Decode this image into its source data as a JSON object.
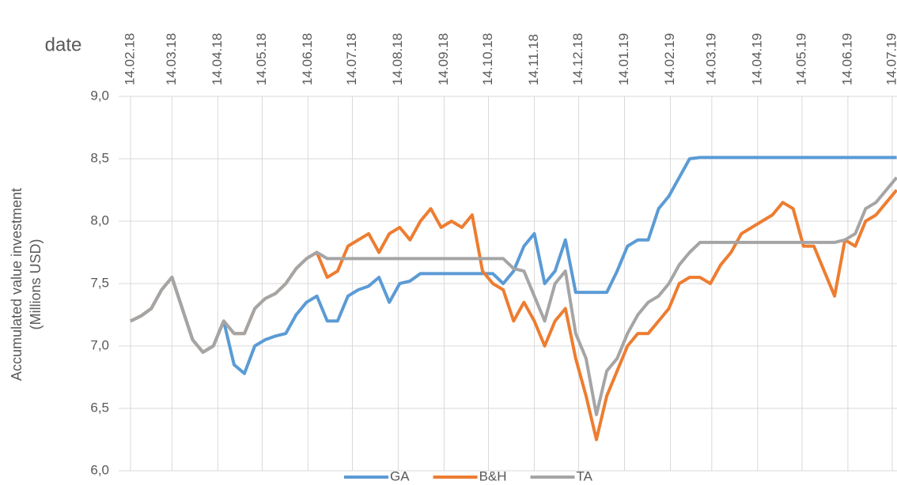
{
  "chart_data": {
    "type": "line",
    "xlabel": "date",
    "ylabel": [
      "Accumulated value investment",
      "(Millions USD)"
    ],
    "x": [
      "14.02.18",
      "21.02.18",
      "28.02.18",
      "07.03.18",
      "14.03.18",
      "21.03.18",
      "28.03.18",
      "04.04.18",
      "11.04.18",
      "18.04.18",
      "25.04.18",
      "02.05.18",
      "09.05.18",
      "16.05.18",
      "23.05.18",
      "30.05.18",
      "06.06.18",
      "13.06.18",
      "20.06.18",
      "27.06.18",
      "04.07.18",
      "11.07.18",
      "18.07.18",
      "25.07.18",
      "01.08.18",
      "08.08.18",
      "15.08.18",
      "22.08.18",
      "29.08.18",
      "05.09.18",
      "12.09.18",
      "19.09.18",
      "26.09.18",
      "03.10.18",
      "10.10.18",
      "17.10.18",
      "24.10.18",
      "31.10.18",
      "07.11.18",
      "14.11.18",
      "21.11.18",
      "28.11.18",
      "05.12.18",
      "12.12.18",
      "19.12.18",
      "26.12.18",
      "02.01.19",
      "09.01.19",
      "16.01.19",
      "23.01.19",
      "30.01.19",
      "06.02.19",
      "13.02.19",
      "20.02.19",
      "27.02.19",
      "06.03.19",
      "13.03.19",
      "20.03.19",
      "27.03.19",
      "03.04.19",
      "10.04.19",
      "17.04.19",
      "24.04.19",
      "01.05.19",
      "08.05.19",
      "15.05.19",
      "22.05.19",
      "29.05.19",
      "05.06.19",
      "12.06.19",
      "19.06.19",
      "26.06.19",
      "03.07.19",
      "10.07.19",
      "17.07.19"
    ],
    "xticks": [
      "14.02.18",
      "14.03.18",
      "14.04.18",
      "14.05.18",
      "14.06.18",
      "14.07.18",
      "14.08.18",
      "14.09.18",
      "14.10.18",
      "14.11.18",
      "14.12.18",
      "14.01.19",
      "14.02.19",
      "14.03.19",
      "14.04.19",
      "14.05.19",
      "14.06.19",
      "14.07.19"
    ],
    "ylim": [
      6,
      9
    ],
    "yticks": [
      {
        "value": 6,
        "label": "6,0"
      },
      {
        "value": 6.5,
        "label": "6,5"
      },
      {
        "value": 7,
        "label": "7,0"
      },
      {
        "value": 7.5,
        "label": "7,5"
      },
      {
        "value": 8,
        "label": "8,0"
      },
      {
        "value": 8.5,
        "label": "8,5"
      },
      {
        "value": 9,
        "label": "9,0"
      }
    ],
    "grid": true,
    "legend": "bottom",
    "series": [
      {
        "name": "GA",
        "color": "#5b9bd5",
        "values": [
          7.2,
          7.24,
          7.3,
          7.45,
          7.55,
          7.3,
          7.05,
          6.95,
          7.0,
          7.2,
          6.85,
          6.78,
          7.0,
          7.05,
          7.08,
          7.1,
          7.25,
          7.35,
          7.4,
          7.2,
          7.2,
          7.4,
          7.45,
          7.48,
          7.55,
          7.35,
          7.5,
          7.52,
          7.58,
          7.58,
          7.58,
          7.58,
          7.58,
          7.58,
          7.58,
          7.58,
          7.5,
          7.6,
          7.8,
          7.9,
          7.5,
          7.6,
          7.85,
          7.43,
          7.43,
          7.43,
          7.43,
          7.6,
          7.8,
          7.85,
          7.85,
          8.1,
          8.2,
          8.35,
          8.5,
          8.51,
          8.51,
          8.51,
          8.51,
          8.51,
          8.51,
          8.51,
          8.51,
          8.51,
          8.51,
          8.51,
          8.51,
          8.51,
          8.51,
          8.51,
          8.51,
          8.51,
          8.51,
          8.51,
          8.51
        ]
      },
      {
        "name": "B&H",
        "color": "#ed7d31",
        "values": [
          7.2,
          7.24,
          7.3,
          7.45,
          7.55,
          7.3,
          7.05,
          6.95,
          7.0,
          7.2,
          7.1,
          7.1,
          7.3,
          7.38,
          7.42,
          7.5,
          7.62,
          7.7,
          7.75,
          7.55,
          7.6,
          7.8,
          7.85,
          7.9,
          7.75,
          7.9,
          7.95,
          7.85,
          8.0,
          8.1,
          7.95,
          8.0,
          7.95,
          8.05,
          7.6,
          7.5,
          7.45,
          7.2,
          7.35,
          7.2,
          7.0,
          7.2,
          7.3,
          6.9,
          6.6,
          6.25,
          6.6,
          6.8,
          7.0,
          7.1,
          7.1,
          7.2,
          7.3,
          7.5,
          7.55,
          7.55,
          7.5,
          7.65,
          7.75,
          7.9,
          7.95,
          8.0,
          8.05,
          8.15,
          8.1,
          7.8,
          7.8,
          7.6,
          7.4,
          7.85,
          7.8,
          8.0,
          8.05,
          8.15,
          8.25
        ]
      },
      {
        "name": "TA",
        "color": "#a5a5a5",
        "values": [
          7.2,
          7.24,
          7.3,
          7.45,
          7.55,
          7.3,
          7.05,
          6.95,
          7.0,
          7.2,
          7.1,
          7.1,
          7.3,
          7.38,
          7.42,
          7.5,
          7.62,
          7.7,
          7.75,
          7.7,
          7.7,
          7.7,
          7.7,
          7.7,
          7.7,
          7.7,
          7.7,
          7.7,
          7.7,
          7.7,
          7.7,
          7.7,
          7.7,
          7.7,
          7.7,
          7.7,
          7.7,
          7.62,
          7.6,
          7.4,
          7.2,
          7.5,
          7.6,
          7.1,
          6.9,
          6.45,
          6.8,
          6.9,
          7.1,
          7.25,
          7.35,
          7.4,
          7.5,
          7.65,
          7.75,
          7.83,
          7.83,
          7.83,
          7.83,
          7.83,
          7.83,
          7.83,
          7.83,
          7.83,
          7.83,
          7.83,
          7.83,
          7.83,
          7.83,
          7.85,
          7.9,
          8.1,
          8.15,
          8.25,
          8.35
        ]
      }
    ]
  }
}
